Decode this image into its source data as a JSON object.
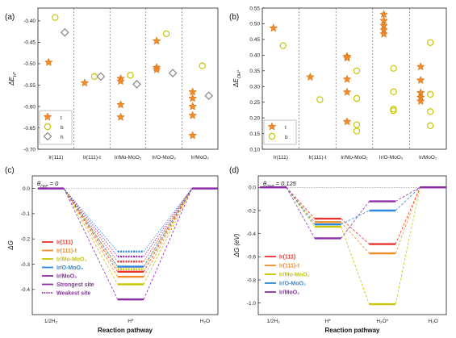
{
  "panels": {
    "a": {
      "label": "(a)"
    },
    "b": {
      "label": "(b)"
    },
    "c": {
      "label": "(c)"
    },
    "d": {
      "label": "(d)"
    }
  },
  "chart_data": [
    {
      "id": "a",
      "type": "scatter",
      "categories": [
        "Ir(111)",
        "Ir(111)-t",
        "Ir/Mo-MoO₂",
        "Ir/O-MoO₂",
        "Ir/MoO₂"
      ],
      "ylabel": "ΔE_H* (eV)",
      "yticks": [
        "-0.40",
        "-0.45",
        "-0.50",
        "-0.55",
        "-0.60",
        "-0.65",
        "-0.70"
      ],
      "ylim": [
        -0.7,
        -0.37
      ],
      "legend": {
        "position": "bottom-left",
        "entries": [
          "t",
          "b",
          "h"
        ]
      },
      "series": [
        {
          "name": "t",
          "marker": "star",
          "color": "#f28c28",
          "points": [
            [
              0,
              -0.497
            ],
            [
              1,
              -0.545
            ],
            [
              2,
              -0.535
            ],
            [
              2,
              -0.541
            ],
            [
              2,
              -0.596
            ],
            [
              2,
              -0.625
            ],
            [
              3,
              -0.447
            ],
            [
              3,
              -0.509
            ],
            [
              3,
              -0.514
            ],
            [
              4,
              -0.566
            ],
            [
              4,
              -0.581
            ],
            [
              4,
              -0.6
            ],
            [
              4,
              -0.621
            ],
            [
              4,
              -0.668
            ]
          ]
        },
        {
          "name": "b",
          "marker": "circle",
          "color": "#c8c400",
          "points": [
            [
              0,
              -0.392
            ],
            [
              1,
              -0.53
            ],
            [
              2,
              -0.527
            ],
            [
              3,
              -0.43
            ],
            [
              4,
              -0.505
            ]
          ]
        },
        {
          "name": "h",
          "marker": "diamond",
          "color": "#888888",
          "points": [
            [
              0,
              -0.427
            ],
            [
              1,
              -0.53
            ],
            [
              2,
              -0.548
            ],
            [
              3,
              -0.522
            ],
            [
              4,
              -0.575
            ]
          ]
        }
      ]
    },
    {
      "id": "b",
      "type": "scatter",
      "categories": [
        "Ir(111)",
        "Ir(111)-t",
        "Ir/Mo-MoO₂",
        "Ir/O-MoO₂",
        "Ir/MoO₂"
      ],
      "ylabel": "ΔE_OH* (eV)",
      "yticks": [
        "0.10",
        "0.15",
        "0.20",
        "0.25",
        "0.30",
        "0.35",
        "0.40",
        "0.45",
        "0.50",
        "0.55"
      ],
      "ylim": [
        0.1,
        0.55
      ],
      "legend": {
        "position": "bottom-left",
        "entries": [
          "t",
          "b"
        ]
      },
      "series": [
        {
          "name": "t",
          "marker": "star",
          "color": "#f28c28",
          "points": [
            [
              0,
              0.486
            ],
            [
              1,
              0.33
            ],
            [
              2,
              0.396
            ],
            [
              2,
              0.391
            ],
            [
              2,
              0.323
            ],
            [
              2,
              0.282
            ],
            [
              2,
              0.188
            ],
            [
              3,
              0.53
            ],
            [
              3,
              0.51
            ],
            [
              3,
              0.494
            ],
            [
              3,
              0.48
            ],
            [
              3,
              0.467
            ],
            [
              4,
              0.363
            ],
            [
              4,
              0.32
            ],
            [
              4,
              0.28
            ],
            [
              4,
              0.265
            ],
            [
              4,
              0.253
            ]
          ]
        },
        {
          "name": "b",
          "marker": "circle",
          "color": "#c8c400",
          "points": [
            [
              0,
              0.43
            ],
            [
              1,
              0.258
            ],
            [
              2,
              0.35
            ],
            [
              2,
              0.262
            ],
            [
              2,
              0.178
            ],
            [
              2,
              0.158
            ],
            [
              3,
              0.358
            ],
            [
              3,
              0.283
            ],
            [
              3,
              0.228
            ],
            [
              3,
              0.223
            ],
            [
              4,
              0.44
            ],
            [
              4,
              0.275
            ],
            [
              4,
              0.22
            ],
            [
              4,
              0.175
            ]
          ]
        }
      ]
    },
    {
      "id": "c",
      "type": "line",
      "title": "θ_OH* = 0",
      "categories": [
        "1/2H₂",
        "H*",
        "H₂O"
      ],
      "xlabel": "Reaction pathway",
      "ylabel": "ΔG",
      "yticks": [
        "0.0",
        "-0.1",
        "-0.2",
        "-0.3",
        "-0.4"
      ],
      "ylim": [
        -0.5,
        0.05
      ],
      "legend": {
        "position": "bottom-left",
        "entries": [
          "Ir(111)",
          "Ir(111)-t",
          "Ir/Mo-MoO₂",
          "Ir/O-MoO₂",
          "Ir/MoO₂",
          "Strongest site",
          "Weakest site"
        ]
      },
      "series": [
        {
          "name": "Ir(111)",
          "color": "#e8322c",
          "strongest": -0.33,
          "weakest": -0.29
        },
        {
          "name": "Ir(111)-t",
          "color": "#f28c28",
          "strongest": -0.35,
          "weakest": -0.31
        },
        {
          "name": "Ir/Mo-MoO₂",
          "color": "#c8c400",
          "strongest": -0.38,
          "weakest": -0.32
        },
        {
          "name": "Ir/O-MoO₂",
          "color": "#2e86de",
          "strongest": -0.31,
          "weakest": -0.25
        },
        {
          "name": "Ir/MoO₂",
          "color": "#8e2ca8",
          "strongest": -0.44,
          "weakest": -0.27
        }
      ]
    },
    {
      "id": "d",
      "type": "line",
      "title": "θ_OH* = 0.125",
      "categories": [
        "1/2H₂",
        "H*",
        "H₂O*",
        "H₂O"
      ],
      "xlabel": "Reaction pathway",
      "ylabel": "ΔG (eV)",
      "yticks": [
        "0.0",
        "-0.2",
        "-0.4",
        "-0.6",
        "-0.8",
        "-1.0"
      ],
      "ylim": [
        -1.1,
        0.1
      ],
      "legend": {
        "position": "bottom-left",
        "entries": [
          "Ir(111)",
          "Ir(111)-t",
          "Ir/Mo-MoO₂",
          "Ir/O-MoO₂",
          "Ir/MoO₂"
        ]
      },
      "series": [
        {
          "name": "Ir(111)",
          "color": "#e8322c",
          "values": [
            0,
            -0.27,
            -0.49,
            0
          ]
        },
        {
          "name": "Ir(111)-t",
          "color": "#f28c28",
          "values": [
            0,
            -0.3,
            -0.57,
            0
          ]
        },
        {
          "name": "Ir/Mo-MoO₂",
          "color": "#c8c400",
          "values": [
            0,
            -0.34,
            -1.01,
            0
          ]
        },
        {
          "name": "Ir/O-MoO₂",
          "color": "#2e86de",
          "values": [
            0,
            -0.32,
            -0.2,
            0
          ]
        },
        {
          "name": "Ir/MoO₂",
          "color": "#8e2ca8",
          "values": [
            0,
            -0.44,
            -0.12,
            0
          ]
        }
      ]
    }
  ]
}
